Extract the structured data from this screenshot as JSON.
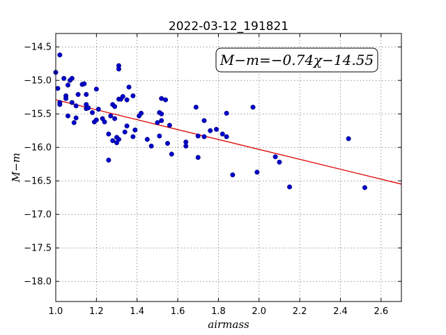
{
  "chart_data": {
    "type": "scatter",
    "title": "2022-03-12_191821",
    "xlabel": "airmass",
    "ylabel": "M−m",
    "xlim": [
      1.0,
      2.7
    ],
    "ylim": [
      -18.3,
      -14.3
    ],
    "x_ticks": [
      1.0,
      1.2,
      1.4,
      1.6,
      1.8,
      2.0,
      2.2,
      2.4,
      2.6
    ],
    "x_tick_labels": [
      "1.0",
      "1.2",
      "1.4",
      "1.6",
      "1.8",
      "2.0",
      "2.2",
      "2.4",
      "2.6"
    ],
    "y_ticks": [
      -14.5,
      -15.0,
      -15.5,
      -16.0,
      -16.5,
      -17.0,
      -17.5,
      -18.0
    ],
    "y_tick_labels": [
      "−14.5",
      "−15.0",
      "−15.5",
      "−16.0",
      "−16.5",
      "−17.0",
      "−17.5",
      "−18.0"
    ],
    "grid": true,
    "point_color": "#0000cc",
    "fit_color": "#dd0000",
    "annotation": "M−m=−0.74χ−14.55",
    "fit": {
      "slope": -0.74,
      "intercept": -14.55,
      "x_range": [
        1.0,
        2.7
      ]
    },
    "points": [
      [
        1.0,
        -14.88
      ],
      [
        1.02,
        -14.62
      ],
      [
        1.01,
        -15.12
      ],
      [
        1.02,
        -15.33
      ],
      [
        1.02,
        -15.36
      ],
      [
        1.04,
        -14.97
      ],
      [
        1.05,
        -15.23
      ],
      [
        1.05,
        -15.27
      ],
      [
        1.06,
        -15.07
      ],
      [
        1.07,
        -15.0
      ],
      [
        1.08,
        -14.97
      ],
      [
        1.06,
        -15.53
      ],
      [
        1.08,
        -15.33
      ],
      [
        1.09,
        -15.63
      ],
      [
        1.1,
        -15.56
      ],
      [
        1.1,
        -15.38
      ],
      [
        1.11,
        -15.21
      ],
      [
        1.13,
        -15.06
      ],
      [
        1.14,
        -15.05
      ],
      [
        1.15,
        -15.21
      ],
      [
        1.15,
        -15.36
      ],
      [
        1.15,
        -15.42
      ],
      [
        1.16,
        -15.41
      ],
      [
        1.18,
        -15.48
      ],
      [
        1.19,
        -15.62
      ],
      [
        1.2,
        -15.13
      ],
      [
        1.2,
        -15.59
      ],
      [
        1.21,
        -15.43
      ],
      [
        1.23,
        -15.57
      ],
      [
        1.24,
        -15.62
      ],
      [
        1.26,
        -16.19
      ],
      [
        1.26,
        -15.8
      ],
      [
        1.27,
        -15.53
      ],
      [
        1.28,
        -15.36
      ],
      [
        1.29,
        -15.39
      ],
      [
        1.28,
        -15.9
      ],
      [
        1.29,
        -15.57
      ],
      [
        1.3,
        -15.85
      ],
      [
        1.3,
        -15.93
      ],
      [
        1.31,
        -15.28
      ],
      [
        1.31,
        -15.88
      ],
      [
        1.31,
        -14.78
      ],
      [
        1.31,
        -14.83
      ],
      [
        1.32,
        -15.28
      ],
      [
        1.33,
        -15.24
      ],
      [
        1.34,
        -15.77
      ],
      [
        1.35,
        -15.68
      ],
      [
        1.35,
        -15.29
      ],
      [
        1.36,
        -15.1
      ],
      [
        1.38,
        -15.23
      ],
      [
        1.38,
        -15.84
      ],
      [
        1.39,
        -15.74
      ],
      [
        1.41,
        -15.53
      ],
      [
        1.42,
        -15.49
      ],
      [
        1.45,
        -15.88
      ],
      [
        1.47,
        -15.98
      ],
      [
        1.5,
        -15.63
      ],
      [
        1.51,
        -15.83
      ],
      [
        1.51,
        -15.48
      ],
      [
        1.52,
        -15.27
      ],
      [
        1.52,
        -15.6
      ],
      [
        1.52,
        -15.5
      ],
      [
        1.54,
        -15.29
      ],
      [
        1.55,
        -15.94
      ],
      [
        1.56,
        -15.67
      ],
      [
        1.57,
        -16.1
      ],
      [
        1.64,
        -15.92
      ],
      [
        1.64,
        -15.98
      ],
      [
        1.69,
        -15.4
      ],
      [
        1.7,
        -15.83
      ],
      [
        1.7,
        -16.15
      ],
      [
        1.73,
        -15.6
      ],
      [
        1.73,
        -15.84
      ],
      [
        1.76,
        -15.75
      ],
      [
        1.79,
        -15.73
      ],
      [
        1.82,
        -15.8
      ],
      [
        1.84,
        -15.49
      ],
      [
        1.84,
        -15.84
      ],
      [
        1.87,
        -16.41
      ],
      [
        1.97,
        -15.4
      ],
      [
        1.99,
        -16.37
      ],
      [
        2.08,
        -16.14
      ],
      [
        2.1,
        -16.22
      ],
      [
        2.15,
        -16.59
      ],
      [
        2.44,
        -15.87
      ],
      [
        2.52,
        -16.6
      ]
    ]
  }
}
